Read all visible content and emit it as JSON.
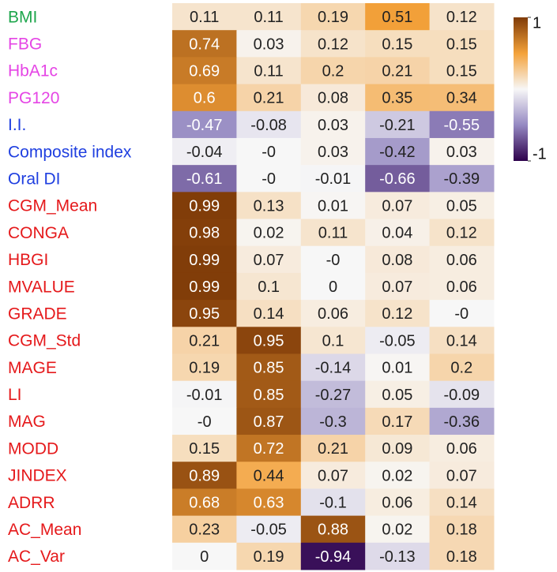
{
  "chart_data": {
    "type": "heatmap",
    "categories": [
      "BMI",
      "FBG",
      "HbA1c",
      "PG120",
      "I.I.",
      "Composite index",
      "Oral DI",
      "CGM_Mean",
      "CONGA",
      "HBGI",
      "MVALUE",
      "GRADE",
      "CGM_Std",
      "MAGE",
      "LI",
      "MAG",
      "MODD",
      "JINDEX",
      "ADRR",
      "AC_Mean",
      "AC_Var"
    ],
    "category_colors": [
      "#1ea64c",
      "#e545e5",
      "#e545e5",
      "#e545e5",
      "#1f3fe0",
      "#1f3fe0",
      "#1f3fe0",
      "#e5191b",
      "#e5191b",
      "#e5191b",
      "#e5191b",
      "#e5191b",
      "#e5191b",
      "#e5191b",
      "#e5191b",
      "#e5191b",
      "#e5191b",
      "#e5191b",
      "#e5191b",
      "#e5191b",
      "#e5191b"
    ],
    "values": [
      [
        0.11,
        0.11,
        0.19,
        0.51,
        0.12
      ],
      [
        0.74,
        0.03,
        0.12,
        0.15,
        0.15
      ],
      [
        0.69,
        0.11,
        0.2,
        0.21,
        0.15
      ],
      [
        0.6,
        0.21,
        0.08,
        0.35,
        0.34
      ],
      [
        -0.47,
        -0.08,
        0.03,
        -0.21,
        -0.55
      ],
      [
        -0.04,
        0,
        0.03,
        -0.42,
        0.03
      ],
      [
        -0.61,
        0,
        -0.01,
        -0.66,
        -0.39
      ],
      [
        0.99,
        0.13,
        0.01,
        0.07,
        0.05
      ],
      [
        0.98,
        0.02,
        0.11,
        0.04,
        0.12
      ],
      [
        0.99,
        0.07,
        0,
        0.08,
        0.06
      ],
      [
        0.99,
        0.1,
        0,
        0.07,
        0.06
      ],
      [
        0.95,
        0.14,
        0.06,
        0.12,
        0
      ],
      [
        0.21,
        0.95,
        0.1,
        -0.05,
        0.14
      ],
      [
        0.19,
        0.85,
        -0.14,
        0.01,
        0.2
      ],
      [
        -0.01,
        0.85,
        -0.27,
        0.05,
        -0.09
      ],
      [
        0,
        0.87,
        -0.3,
        0.17,
        -0.36
      ],
      [
        0.15,
        0.72,
        0.21,
        0.09,
        0.06
      ],
      [
        0.89,
        0.44,
        0.07,
        0.02,
        0.07
      ],
      [
        0.68,
        0.63,
        -0.1,
        0.06,
        0.14
      ],
      [
        0.23,
        -0.05,
        0.88,
        0.02,
        0.18
      ],
      [
        0,
        0.19,
        -0.94,
        -0.13,
        0.18
      ]
    ],
    "value_labels": [
      [
        "0.11",
        "0.11",
        "0.19",
        "0.51",
        "0.12"
      ],
      [
        "0.74",
        "0.03",
        "0.12",
        "0.15",
        "0.15"
      ],
      [
        "0.69",
        "0.11",
        "0.2",
        "0.21",
        "0.15"
      ],
      [
        "0.6",
        "0.21",
        "0.08",
        "0.35",
        "0.34"
      ],
      [
        "-0.47",
        "-0.08",
        "0.03",
        "-0.21",
        "-0.55"
      ],
      [
        "-0.04",
        "-0",
        "0.03",
        "-0.42",
        "0.03"
      ],
      [
        "-0.61",
        "-0",
        "-0.01",
        "-0.66",
        "-0.39"
      ],
      [
        "0.99",
        "0.13",
        "0.01",
        "0.07",
        "0.05"
      ],
      [
        "0.98",
        "0.02",
        "0.11",
        "0.04",
        "0.12"
      ],
      [
        "0.99",
        "0.07",
        "-0",
        "0.08",
        "0.06"
      ],
      [
        "0.99",
        "0.1",
        "0",
        "0.07",
        "0.06"
      ],
      [
        "0.95",
        "0.14",
        "0.06",
        "0.12",
        "-0"
      ],
      [
        "0.21",
        "0.95",
        "0.1",
        "-0.05",
        "0.14"
      ],
      [
        "0.19",
        "0.85",
        "-0.14",
        "0.01",
        "0.2"
      ],
      [
        "-0.01",
        "0.85",
        "-0.27",
        "0.05",
        "-0.09"
      ],
      [
        "-0",
        "0.87",
        "-0.3",
        "0.17",
        "-0.36"
      ],
      [
        "0.15",
        "0.72",
        "0.21",
        "0.09",
        "0.06"
      ],
      [
        "0.89",
        "0.44",
        "0.07",
        "0.02",
        "0.07"
      ],
      [
        "0.68",
        "0.63",
        "-0.1",
        "0.06",
        "0.14"
      ],
      [
        "0.23",
        "-0.05",
        "0.88",
        "0.02",
        "0.18"
      ],
      [
        "0",
        "0.19",
        "-0.94",
        "-0.13",
        "0.18"
      ]
    ],
    "colors": [
      "#2d004b",
      "#9589c2",
      "#f7f7f7",
      "#f4a23a",
      "#7f3b08"
    ],
    "zlim": [
      -1,
      1
    ],
    "zticks": [
      1,
      -1
    ]
  }
}
